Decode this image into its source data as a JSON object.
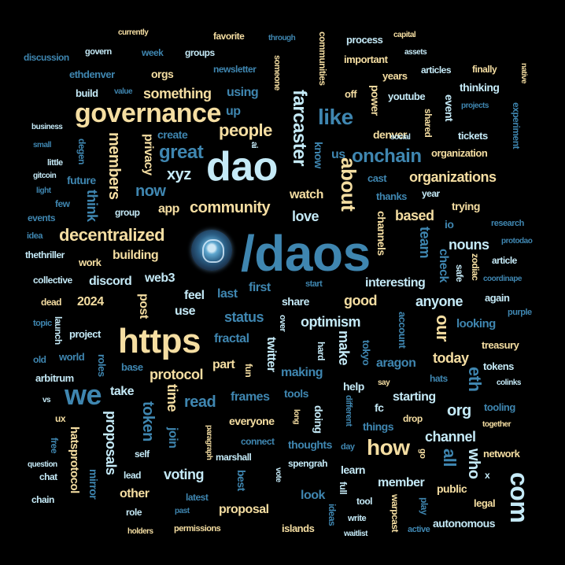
{
  "colors": {
    "background": "#000000",
    "cream": "#f5dea2",
    "blue": "#3f86b0",
    "pale": "#c5eaf7",
    "light_blue": "#9fd3ec"
  },
  "logo": {
    "name": "daos-channel-logo"
  },
  "words": {
    "daos": "/daos",
    "dao": "dao",
    "https": "https",
    "governance": "governance",
    "com": "com",
    "we": "we",
    "how": "how",
    "farcaster": "farcaster",
    "like": "like",
    "about": "about",
    "onchain": "onchain",
    "decentralized": "decentralized",
    "community": "community",
    "people": "people",
    "great": "great",
    "something": "something",
    "members": "members",
    "xyz": "xyz",
    "now": "now",
    "organizations": "organizations",
    "protocol": "protocol",
    "token": "token",
    "proposals": "proposals",
    "time": "time",
    "read": "read",
    "join": "join",
    "voting": "voting",
    "status": "status",
    "optimism": "optimism",
    "good": "good",
    "anyone": "anyone",
    "our": "our",
    "today": "today",
    "eth": "eth",
    "org": "org",
    "all": "all",
    "who": "who",
    "channel": "channel",
    "team": "team",
    "nouns": "nouns",
    "check": "check",
    "based": "based",
    "love": "love",
    "watch": "watch",
    "app": "app",
    "think": "think",
    "building": "building",
    "web3": "web3",
    "discord": "discord",
    "y2024": "2024",
    "post": "post",
    "feel": "feel",
    "last": "last",
    "first": "first",
    "use": "use",
    "share": "share",
    "interesting": "interesting",
    "make": "make",
    "making": "making",
    "aragon": "aragon",
    "starting": "starting",
    "help": "help",
    "fc": "fc",
    "things": "things",
    "twitter": "twitter",
    "fractal": "fractal",
    "part": "part",
    "frames": "frames",
    "tools": "tools",
    "take": "take",
    "everyone": "everyone",
    "doing": "doing",
    "thoughts": "thoughts",
    "best": "best",
    "other": "other",
    "look": "look",
    "member": "member",
    "learn": "learn",
    "proposal": "proposal",
    "public": "public",
    "autonomous": "autonomous",
    "network": "network",
    "hatsprotocol": "hatsprotocol",
    "mirror": "mirror",
    "future": "future",
    "privacy": "privacy",
    "create": "create",
    "using": "using",
    "up": "up",
    "us": "us",
    "know": "know",
    "denver": "denver",
    "youtube": "youtube",
    "power": "power",
    "off": "off",
    "thinking": "thinking",
    "event": "event",
    "shared": "shared",
    "organization": "organization",
    "tickets": "tickets",
    "cast": "cast",
    "thanks": "thanks",
    "year": "year",
    "trying": "trying",
    "io": "io",
    "channels": "channels",
    "safe": "safe",
    "zodiac": "zodiac",
    "again": "again",
    "looking": "looking",
    "treasury": "treasury",
    "tokens": "tokens",
    "tooling": "tooling",
    "fun": "fun",
    "hard": "hard",
    "tokyo": "tokyo",
    "account": "account",
    "project": "project",
    "roles": "roles",
    "base": "base",
    "world": "world",
    "arbitrum": "arbitrum",
    "launch": "launch",
    "old": "old",
    "topic": "topic",
    "dead": "dead",
    "collective": "collective",
    "work": "work",
    "thethriller": "thethriller",
    "idea": "idea",
    "events": "events",
    "few": "few",
    "light": "light",
    "gitcoin": "gitcoin",
    "little": "little",
    "degen": "degen",
    "small": "small",
    "business": "business",
    "build": "build",
    "value": "value",
    "ethdenver": "ethdenver",
    "orgs": "orgs",
    "discussion": "discussion",
    "govern": "govern",
    "week": "week",
    "groups": "groups",
    "currently": "currently",
    "favorite": "favorite",
    "through": "through",
    "newsletter": "newsletter",
    "ai": "ai",
    "someone": "someone",
    "communities": "communities",
    "process": "process",
    "important": "important",
    "capital": "capital",
    "assets": "assets",
    "years": "years",
    "articles": "articles",
    "finally": "finally",
    "native": "native",
    "projects": "projects",
    "experiment": "experiment",
    "social": "social",
    "group": "group",
    "research": "research",
    "protodao": "protodao",
    "article": "article",
    "coordinape": "coordinape",
    "start": "start",
    "purple": "purple",
    "over": "over",
    "say": "say",
    "hats": "hats",
    "colinks": "colinks",
    "different": "different",
    "drop": "drop",
    "together": "together",
    "long": "long",
    "day": "day",
    "go": "go",
    "vs": "vs",
    "ux": "ux",
    "free": "free",
    "question": "question",
    "chat": "chat",
    "chain": "chain",
    "self": "self",
    "lead": "lead",
    "marshall": "marshall",
    "paragraph": "paragraph",
    "connect": "connect",
    "spengrah": "spengrah",
    "vote": "vote",
    "full": "full",
    "tool": "tool",
    "warpcast": "warpcast",
    "play": "play",
    "legal": "legal",
    "x": "x",
    "role": "role",
    "latest": "latest",
    "past": "past",
    "permissions": "permissions",
    "holders": "holders",
    "islands": "islands",
    "ideas": "ideas",
    "write": "write",
    "waitlist": "waitlist",
    "active": "active"
  }
}
